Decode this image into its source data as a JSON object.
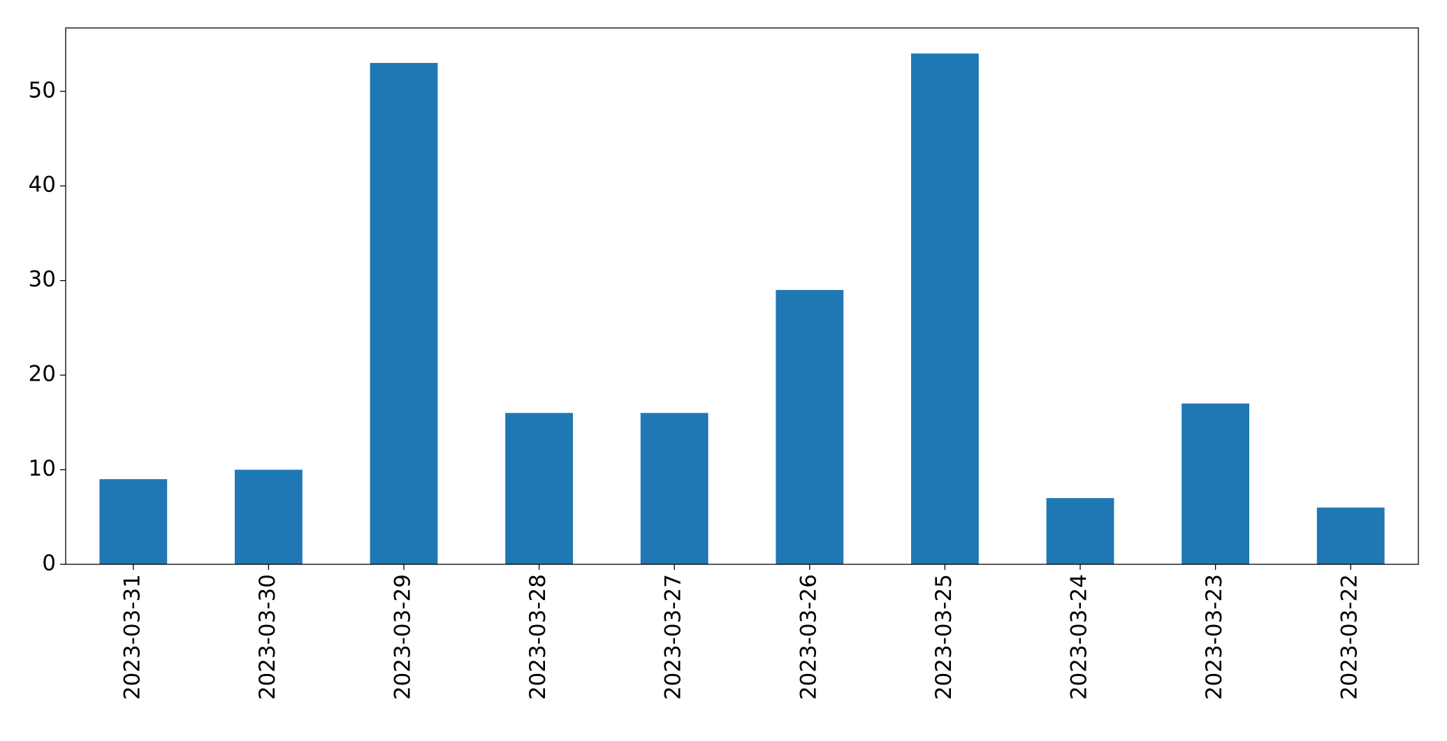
{
  "chart_data": {
    "type": "bar",
    "categories": [
      "2023-03-31",
      "2023-03-30",
      "2023-03-29",
      "2023-03-28",
      "2023-03-27",
      "2023-03-26",
      "2023-03-25",
      "2023-03-24",
      "2023-03-23",
      "2023-03-22"
    ],
    "values": [
      9,
      10,
      53,
      16,
      16,
      29,
      54,
      7,
      17,
      6
    ],
    "color": "#1f77b4",
    "ylim": [
      0,
      56.7
    ],
    "yticks": [
      0,
      10,
      20,
      30,
      40,
      50
    ],
    "grid": false
  }
}
